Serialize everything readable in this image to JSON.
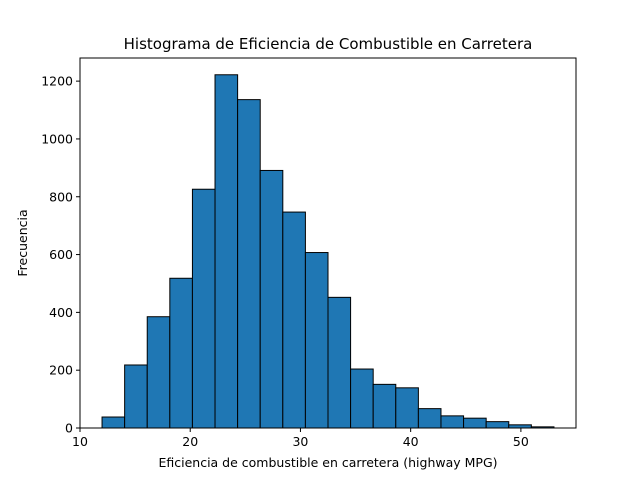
{
  "chart_data": {
    "type": "bar",
    "title": "Histograma de Eficiencia de Combustible en Carretera",
    "xlabel": "Eficiencia de combustible en carretera (highway MPG)",
    "ylabel": "Frecuencia",
    "xlim": [
      10,
      55
    ],
    "ylim": [
      0,
      1280
    ],
    "xticks": [
      10,
      20,
      30,
      40,
      50
    ],
    "yticks": [
      0,
      200,
      400,
      600,
      800,
      1000,
      1200
    ],
    "bin_edges": [
      12,
      14.05,
      16.1,
      18.15,
      20.2,
      22.25,
      24.3,
      26.35,
      28.4,
      30.45,
      32.5,
      34.55,
      36.6,
      38.65,
      40.7,
      42.75,
      44.8,
      46.85,
      48.9,
      50.95,
      53
    ],
    "values": [
      38,
      218,
      385,
      518,
      826,
      1222,
      1136,
      891,
      747,
      607,
      452,
      204,
      151,
      139,
      67,
      42,
      34,
      22,
      11,
      4
    ],
    "bar_color": "#1f77b4",
    "edge_color": "#000000",
    "grid": false,
    "legend": "none"
  }
}
